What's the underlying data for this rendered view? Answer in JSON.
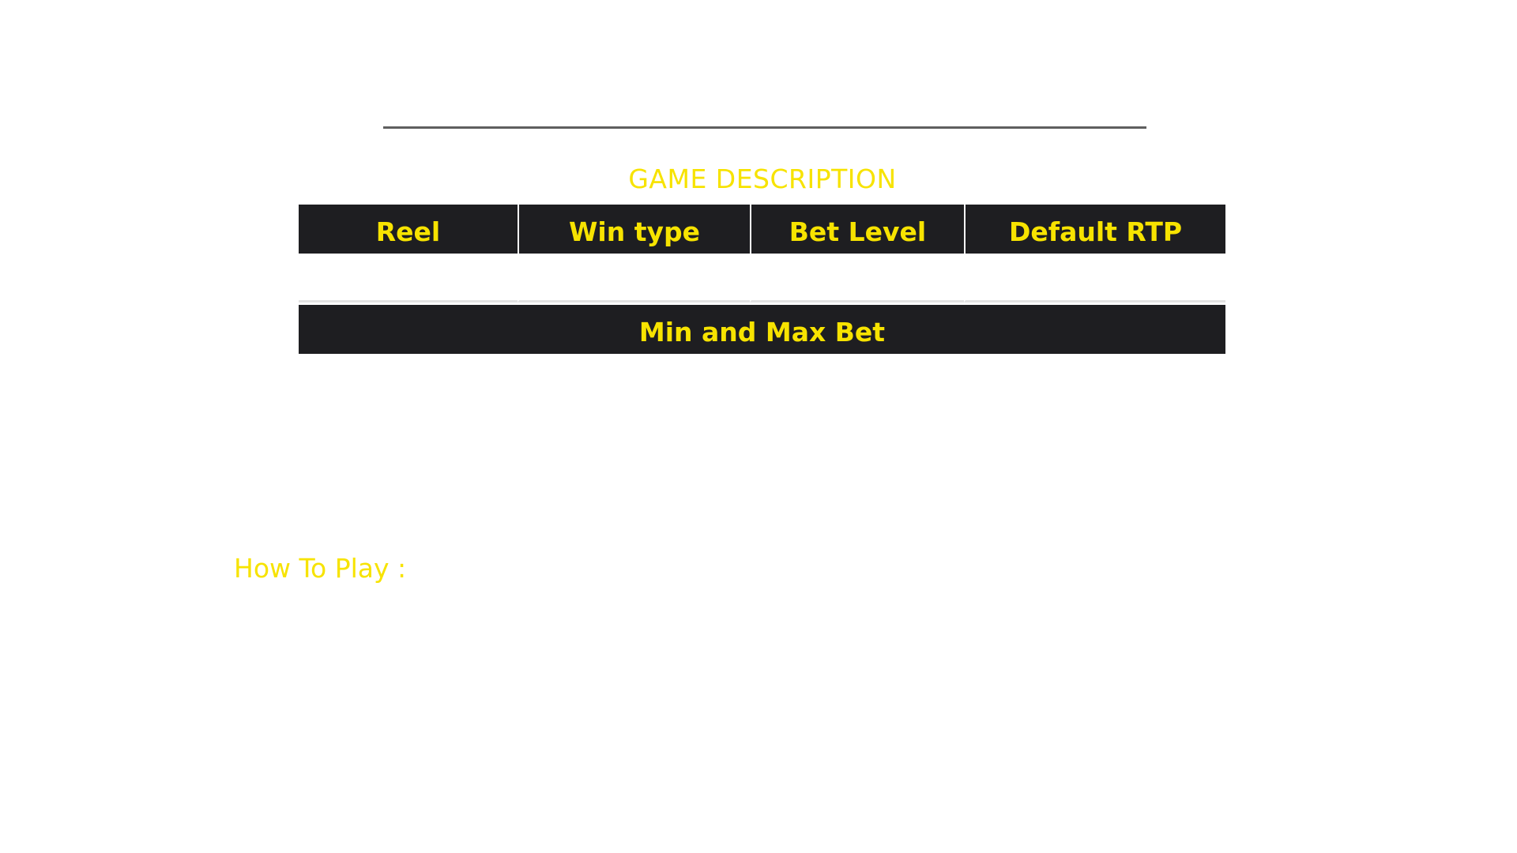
{
  "section_title": "GAME DESCRIPTION",
  "table": {
    "headers": [
      "Reel",
      "Win type",
      "Bet Level",
      "Default RTP"
    ],
    "values": [
      "",
      "",
      "",
      ""
    ]
  },
  "min_max": {
    "header": "Min and Max Bet"
  },
  "how_to_play": {
    "label": "How To Play :"
  },
  "colors": {
    "accent": "#f7e300",
    "header_bg": "#1e1e21",
    "divider": "#5f5f5f"
  }
}
